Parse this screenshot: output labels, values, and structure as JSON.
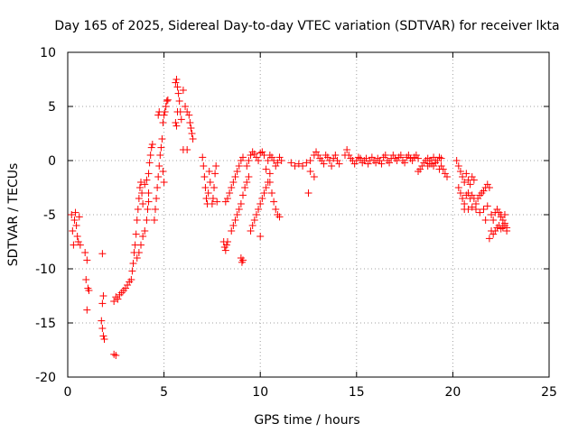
{
  "chart_data": {
    "type": "scatter",
    "title": "Day 165 of 2025, Sidereal Day-to-day VTEC variation (SDTVAR) for receiver lkta",
    "xlabel": "GPS time / hours",
    "ylabel": "SDTVAR / TECUs",
    "xlim": [
      0,
      25
    ],
    "ylim": [
      -20,
      10
    ],
    "xticks": [
      "0",
      "5",
      "10",
      "15",
      "20",
      "25"
    ],
    "yticks": [
      "10",
      "5",
      "0",
      "-5",
      "-10",
      "-15",
      "-20"
    ],
    "grid": true,
    "marker": "plus",
    "color": "#ff0000",
    "series": [
      {
        "name": "SDTVAR",
        "points": [
          [
            0.2,
            -5.0
          ],
          [
            0.25,
            -6.5
          ],
          [
            0.3,
            -7.8
          ],
          [
            0.35,
            -5.5
          ],
          [
            0.4,
            -4.8
          ],
          [
            0.45,
            -6.0
          ],
          [
            0.5,
            -7.0
          ],
          [
            0.55,
            -7.5
          ],
          [
            0.6,
            -5.2
          ],
          [
            0.65,
            -7.8
          ],
          [
            0.9,
            -8.5
          ],
          [
            1.0,
            -9.2
          ],
          [
            0.95,
            -11.0
          ],
          [
            1.05,
            -11.8
          ],
          [
            1.0,
            -13.8
          ],
          [
            1.1,
            -12.0
          ],
          [
            1.8,
            -8.6
          ],
          [
            1.85,
            -12.5
          ],
          [
            1.8,
            -13.2
          ],
          [
            1.75,
            -14.8
          ],
          [
            1.8,
            -15.5
          ],
          [
            1.85,
            -16.2
          ],
          [
            1.9,
            -16.5
          ],
          [
            2.4,
            -17.9
          ],
          [
            2.5,
            -18.0
          ],
          [
            2.4,
            -13.0
          ],
          [
            2.5,
            -12.6
          ],
          [
            2.6,
            -12.8
          ],
          [
            2.7,
            -12.4
          ],
          [
            2.8,
            -12.2
          ],
          [
            2.9,
            -12.0
          ],
          [
            3.0,
            -11.8
          ],
          [
            3.1,
            -11.5
          ],
          [
            3.2,
            -11.2
          ],
          [
            3.3,
            -11.0
          ],
          [
            3.35,
            -10.2
          ],
          [
            3.4,
            -9.5
          ],
          [
            3.45,
            -8.5
          ],
          [
            3.5,
            -7.8
          ],
          [
            3.55,
            -6.8
          ],
          [
            3.6,
            -5.5
          ],
          [
            3.65,
            -4.5
          ],
          [
            3.7,
            -3.5
          ],
          [
            3.75,
            -2.5
          ],
          [
            3.8,
            -2.0
          ],
          [
            3.6,
            -9.0
          ],
          [
            3.7,
            -8.5
          ],
          [
            3.8,
            -7.8
          ],
          [
            3.9,
            -7.0
          ],
          [
            4.0,
            -6.5
          ],
          [
            4.1,
            -5.5
          ],
          [
            4.15,
            -4.5
          ],
          [
            4.2,
            -3.8
          ],
          [
            3.85,
            -3.0
          ],
          [
            3.9,
            -4.0
          ],
          [
            4.0,
            -2.2
          ],
          [
            4.1,
            -1.8
          ],
          [
            4.2,
            -3.0
          ],
          [
            4.2,
            -1.2
          ],
          [
            4.25,
            -0.2
          ],
          [
            4.3,
            0.5
          ],
          [
            4.35,
            1.2
          ],
          [
            4.4,
            1.5
          ],
          [
            4.5,
            -5.5
          ],
          [
            4.55,
            -4.5
          ],
          [
            4.6,
            -3.5
          ],
          [
            4.65,
            -2.5
          ],
          [
            4.7,
            -1.5
          ],
          [
            4.75,
            -0.5
          ],
          [
            4.8,
            0.5
          ],
          [
            4.85,
            1.2
          ],
          [
            4.9,
            2.0
          ],
          [
            4.95,
            -1.0
          ],
          [
            5.0,
            -2.0
          ],
          [
            4.95,
            3.5
          ],
          [
            5.0,
            4.2
          ],
          [
            5.05,
            4.5
          ],
          [
            5.1,
            5.0
          ],
          [
            5.15,
            5.5
          ],
          [
            5.2,
            5.6
          ],
          [
            4.7,
            4.2
          ],
          [
            4.75,
            4.5
          ],
          [
            5.6,
            7.2
          ],
          [
            5.65,
            7.5
          ],
          [
            5.7,
            6.8
          ],
          [
            5.75,
            6.2
          ],
          [
            5.8,
            5.5
          ],
          [
            5.85,
            4.5
          ],
          [
            5.9,
            3.8
          ],
          [
            5.6,
            3.5
          ],
          [
            5.65,
            3.2
          ],
          [
            5.7,
            4.5
          ],
          [
            6.0,
            6.5
          ],
          [
            6.1,
            5.0
          ],
          [
            6.2,
            4.5
          ],
          [
            6.3,
            4.2
          ],
          [
            6.35,
            3.5
          ],
          [
            6.4,
            3.0
          ],
          [
            6.45,
            2.5
          ],
          [
            6.5,
            2.0
          ],
          [
            6.0,
            1.0
          ],
          [
            6.2,
            1.0
          ],
          [
            7.0,
            0.3
          ],
          [
            7.05,
            -0.5
          ],
          [
            7.1,
            -1.5
          ],
          [
            7.15,
            -2.5
          ],
          [
            7.2,
            -3.5
          ],
          [
            7.25,
            -4.0
          ],
          [
            7.3,
            -3.0
          ],
          [
            7.35,
            -1.0
          ],
          [
            7.4,
            -2.0
          ],
          [
            7.5,
            -4.0
          ],
          [
            7.55,
            -3.5
          ],
          [
            7.6,
            -2.5
          ],
          [
            7.65,
            -1.2
          ],
          [
            7.7,
            -0.5
          ],
          [
            7.75,
            -3.8
          ],
          [
            8.1,
            -7.5
          ],
          [
            8.15,
            -8.0
          ],
          [
            8.2,
            -8.3
          ],
          [
            8.25,
            -7.8
          ],
          [
            8.3,
            -7.5
          ],
          [
            8.2,
            -3.8
          ],
          [
            8.3,
            -3.5
          ],
          [
            8.4,
            -3.0
          ],
          [
            8.5,
            -2.5
          ],
          [
            8.6,
            -2.0
          ],
          [
            8.7,
            -1.5
          ],
          [
            8.8,
            -1.0
          ],
          [
            8.9,
            -0.5
          ],
          [
            9.0,
            0.0
          ],
          [
            9.1,
            0.3
          ],
          [
            8.5,
            -6.5
          ],
          [
            8.6,
            -6.0
          ],
          [
            8.7,
            -5.5
          ],
          [
            8.8,
            -5.0
          ],
          [
            8.9,
            -4.5
          ],
          [
            9.0,
            -4.0
          ],
          [
            9.1,
            -3.2
          ],
          [
            9.2,
            -2.5
          ],
          [
            9.3,
            -2.0
          ],
          [
            9.4,
            -1.5
          ],
          [
            9.0,
            -9.0
          ],
          [
            9.05,
            -9.4
          ],
          [
            9.1,
            -9.2
          ],
          [
            9.5,
            -6.5
          ],
          [
            9.6,
            -6.0
          ],
          [
            9.7,
            -5.5
          ],
          [
            9.8,
            -5.0
          ],
          [
            9.9,
            -4.5
          ],
          [
            10.0,
            -4.0
          ],
          [
            10.1,
            -3.5
          ],
          [
            10.2,
            -3.0
          ],
          [
            10.3,
            -2.5
          ],
          [
            10.4,
            -2.0
          ],
          [
            9.3,
            -0.5
          ],
          [
            9.4,
            0.0
          ],
          [
            9.5,
            0.5
          ],
          [
            9.6,
            0.8
          ],
          [
            9.7,
            0.6
          ],
          [
            9.8,
            0.3
          ],
          [
            9.9,
            0.0
          ],
          [
            10.0,
            0.7
          ],
          [
            10.1,
            0.8
          ],
          [
            10.2,
            0.5
          ],
          [
            10.0,
            -7.0
          ],
          [
            10.5,
            -2.0
          ],
          [
            10.6,
            -3.0
          ],
          [
            10.7,
            -3.8
          ],
          [
            10.8,
            -4.5
          ],
          [
            10.9,
            -5.0
          ],
          [
            11.0,
            -5.2
          ],
          [
            10.4,
            0.0
          ],
          [
            10.5,
            0.5
          ],
          [
            10.6,
            0.3
          ],
          [
            10.7,
            0.0
          ],
          [
            10.8,
            -0.5
          ],
          [
            10.9,
            -0.2
          ],
          [
            11.0,
            0.3
          ],
          [
            11.1,
            0.0
          ],
          [
            10.3,
            -0.8
          ],
          [
            10.5,
            -1.2
          ],
          [
            11.6,
            -0.2
          ],
          [
            11.8,
            -0.5
          ],
          [
            12.0,
            -0.3
          ],
          [
            12.2,
            -0.5
          ],
          [
            12.4,
            -0.2
          ],
          [
            12.6,
            0.0
          ],
          [
            12.5,
            -3.0
          ],
          [
            12.8,
            -1.5
          ],
          [
            12.6,
            -1.0
          ],
          [
            12.8,
            0.5
          ],
          [
            12.9,
            0.8
          ],
          [
            13.0,
            0.5
          ],
          [
            13.1,
            0.2
          ],
          [
            13.2,
            0.0
          ],
          [
            13.3,
            -0.3
          ],
          [
            13.4,
            0.5
          ],
          [
            13.5,
            0.3
          ],
          [
            13.6,
            0.0
          ],
          [
            13.7,
            -0.5
          ],
          [
            13.8,
            0.2
          ],
          [
            13.9,
            0.5
          ],
          [
            14.0,
            0.0
          ],
          [
            14.1,
            -0.3
          ],
          [
            14.4,
            0.5
          ],
          [
            14.5,
            1.0
          ],
          [
            14.6,
            0.5
          ],
          [
            14.7,
            0.2
          ],
          [
            14.8,
            0.0
          ],
          [
            14.9,
            -0.3
          ],
          [
            15.0,
            0.0
          ],
          [
            15.1,
            0.3
          ],
          [
            15.2,
            0.2
          ],
          [
            15.3,
            -0.2
          ],
          [
            15.4,
            0.0
          ],
          [
            15.5,
            0.2
          ],
          [
            15.6,
            -0.3
          ],
          [
            15.7,
            0.0
          ],
          [
            15.8,
            0.3
          ],
          [
            15.9,
            0.0
          ],
          [
            16.0,
            -0.2
          ],
          [
            16.1,
            0.2
          ],
          [
            16.2,
            0.0
          ],
          [
            16.3,
            -0.3
          ],
          [
            16.4,
            0.3
          ],
          [
            16.5,
            0.5
          ],
          [
            16.6,
            0.0
          ],
          [
            16.7,
            -0.2
          ],
          [
            16.8,
            0.2
          ],
          [
            16.9,
            0.5
          ],
          [
            17.0,
            0.2
          ],
          [
            17.1,
            0.0
          ],
          [
            17.2,
            0.3
          ],
          [
            17.3,
            0.5
          ],
          [
            17.4,
            0.0
          ],
          [
            17.5,
            -0.2
          ],
          [
            17.6,
            0.3
          ],
          [
            17.7,
            0.5
          ],
          [
            17.8,
            0.2
          ],
          [
            17.9,
            0.0
          ],
          [
            18.0,
            0.3
          ],
          [
            18.1,
            0.5
          ],
          [
            18.2,
            0.2
          ],
          [
            18.2,
            -1.0
          ],
          [
            18.3,
            -0.8
          ],
          [
            18.4,
            -0.5
          ],
          [
            18.5,
            -0.2
          ],
          [
            18.6,
            0.0
          ],
          [
            18.7,
            0.2
          ],
          [
            18.8,
            0.0
          ],
          [
            18.9,
            -0.3
          ],
          [
            19.0,
            -0.5
          ],
          [
            19.1,
            -0.2
          ],
          [
            19.2,
            0.0
          ],
          [
            19.3,
            0.3
          ],
          [
            19.4,
            -0.5
          ],
          [
            19.5,
            -0.8
          ],
          [
            19.6,
            -1.2
          ],
          [
            19.7,
            -1.5
          ],
          [
            19.3,
            -0.8
          ],
          [
            19.4,
            0.2
          ],
          [
            18.7,
            -0.5
          ],
          [
            18.8,
            -0.3
          ],
          [
            18.9,
            0.0
          ],
          [
            19.0,
            0.3
          ],
          [
            19.1,
            0.0
          ],
          [
            20.2,
            0.0
          ],
          [
            20.3,
            -0.5
          ],
          [
            20.4,
            -1.0
          ],
          [
            20.5,
            -1.5
          ],
          [
            20.6,
            -2.0
          ],
          [
            20.7,
            -1.2
          ],
          [
            20.8,
            -1.8
          ],
          [
            20.9,
            -2.2
          ],
          [
            21.0,
            -1.5
          ],
          [
            21.1,
            -1.8
          ],
          [
            20.3,
            -2.5
          ],
          [
            20.4,
            -3.0
          ],
          [
            20.5,
            -3.5
          ],
          [
            20.6,
            -4.0
          ],
          [
            20.7,
            -3.2
          ],
          [
            20.8,
            -3.0
          ],
          [
            20.9,
            -3.5
          ],
          [
            21.0,
            -3.2
          ],
          [
            21.1,
            -3.5
          ],
          [
            21.2,
            -4.0
          ],
          [
            21.3,
            -3.5
          ],
          [
            21.4,
            -3.2
          ],
          [
            21.5,
            -3.0
          ],
          [
            21.6,
            -2.8
          ],
          [
            21.7,
            -2.5
          ],
          [
            21.8,
            -2.2
          ],
          [
            21.9,
            -2.5
          ],
          [
            20.6,
            -4.5
          ],
          [
            20.8,
            -4.5
          ],
          [
            21.0,
            -4.3
          ],
          [
            21.2,
            -4.5
          ],
          [
            21.4,
            -4.8
          ],
          [
            21.6,
            -4.5
          ],
          [
            21.8,
            -4.2
          ],
          [
            21.7,
            -5.5
          ],
          [
            22.0,
            -5.0
          ],
          [
            22.1,
            -5.5
          ],
          [
            22.2,
            -4.8
          ],
          [
            22.3,
            -4.5
          ],
          [
            22.4,
            -4.8
          ],
          [
            22.5,
            -5.2
          ],
          [
            22.6,
            -5.5
          ],
          [
            22.7,
            -6.0
          ],
          [
            22.8,
            -6.5
          ],
          [
            22.0,
            -6.5
          ],
          [
            22.1,
            -6.8
          ],
          [
            22.2,
            -6.5
          ],
          [
            22.3,
            -6.2
          ],
          [
            22.4,
            -6.0
          ],
          [
            22.5,
            -6.3
          ],
          [
            22.6,
            -6.0
          ],
          [
            22.7,
            -5.8
          ],
          [
            22.8,
            -6.2
          ],
          [
            21.9,
            -7.2
          ],
          [
            22.5,
            -5.0
          ],
          [
            22.6,
            -6.2
          ],
          [
            22.7,
            -5.0
          ]
        ]
      }
    ]
  }
}
